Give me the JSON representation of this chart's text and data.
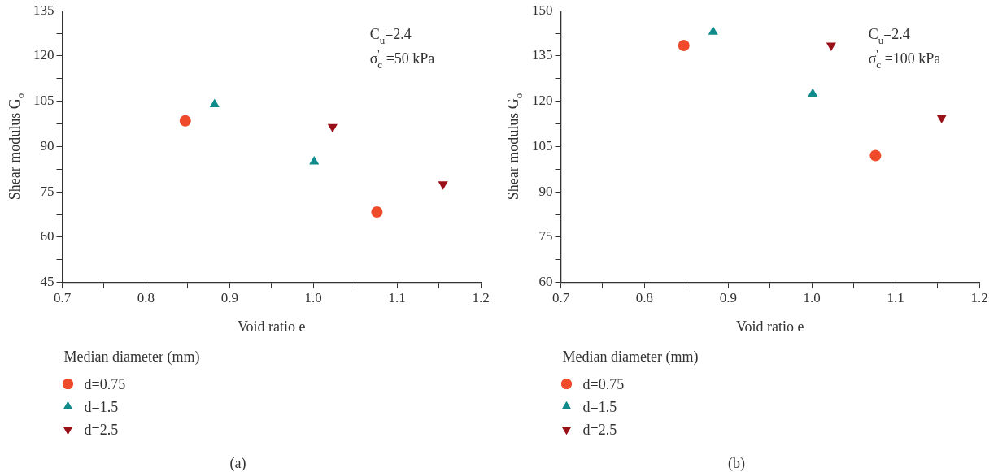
{
  "chart_data": [
    {
      "type": "scatter",
      "xlabel": "Void ratio e",
      "ylabel": "Shear modulus G$_{o}$",
      "legend_title": "Median diameter (mm)",
      "legend": "bottom",
      "annotations": [
        "C$_{u}$=2.4",
        "σ$_{c}$$^{'}$ =50 kPa",
        "(a)"
      ],
      "xlim": [
        0.7,
        1.2
      ],
      "xticks": [
        0.7,
        {
          "value": 0.75,
          "label": null
        },
        0.8,
        {
          "value": 0.85,
          "label": null
        },
        0.9,
        {
          "value": 0.95,
          "label": null
        },
        {
          "value": 1,
          "label": "1.0"
        },
        {
          "value": 1.05,
          "label": null
        },
        1.1,
        {
          "value": 1.15,
          "label": null
        },
        1.2
      ],
      "ylim": [
        45,
        135
      ],
      "yticks": [
        45,
        {
          "value": 52.5,
          "label": null
        },
        60,
        {
          "value": 67.5,
          "label": null
        },
        75,
        {
          "value": 82.5,
          "label": null
        },
        90,
        {
          "value": 97.5,
          "label": null
        },
        105,
        {
          "value": 112.5,
          "label": null
        },
        120,
        {
          "value": 127.5,
          "label": null
        },
        135
      ],
      "series": [
        {
          "name": "d=0.75",
          "color": "#ef4a2a",
          "marker": "circle",
          "x": [
            0.847,
            1.076
          ],
          "values": [
            98.5,
            68.3
          ]
        },
        {
          "name": "d=1.5",
          "color": "#108b8b",
          "marker": "triangle",
          "x": [
            0.882,
            1.001
          ],
          "values": [
            104,
            85
          ]
        },
        {
          "name": "d=2.5",
          "color": "#9a1019",
          "marker": "triangle_down",
          "x": [
            1.023,
            1.155
          ],
          "values": [
            96.5,
            77.5
          ]
        }
      ]
    },
    {
      "type": "scatter",
      "xlabel": "Void ratio e",
      "ylabel": "Shear modulus G$_{o}$",
      "legend_title": "Median diameter (mm)",
      "legend": "bottom",
      "annotations": [
        "C$_{u}$=2.4",
        "σ$_{c}$$^{'}$ =100 kPa",
        "(b)"
      ],
      "xlim": [
        0.7,
        1.2
      ],
      "xticks": [
        0.7,
        {
          "value": 0.75,
          "label": null
        },
        0.8,
        {
          "value": 0.85,
          "label": null
        },
        0.9,
        {
          "value": 0.95,
          "label": null
        },
        {
          "value": 1,
          "label": "1.0"
        },
        {
          "value": 1.05,
          "label": null
        },
        1.1,
        {
          "value": 1.15,
          "label": null
        },
        1.2
      ],
      "ylim": [
        60,
        150
      ],
      "yticks": [
        60,
        {
          "value": 67.5,
          "label": null
        },
        75,
        {
          "value": 82.5,
          "label": null
        },
        90,
        {
          "value": 97.5,
          "label": null
        },
        105,
        {
          "value": 112.5,
          "label": null
        },
        120,
        {
          "value": 127.5,
          "label": null
        },
        135,
        {
          "value": 142.5,
          "label": null
        },
        150
      ],
      "series": [
        {
          "name": "d=0.75",
          "color": "#ef4a2a",
          "marker": "circle",
          "x": [
            0.847,
            1.076
          ],
          "values": [
            138.5,
            102
          ]
        },
        {
          "name": "d=1.5",
          "color": "#108b8b",
          "marker": "triangle",
          "x": [
            0.882,
            1.001
          ],
          "values": [
            143,
            122.5
          ]
        },
        {
          "name": "d=2.5",
          "color": "#9a1019",
          "marker": "triangle_down",
          "x": [
            1.023,
            1.155
          ],
          "values": [
            138.5,
            114.5
          ]
        }
      ]
    }
  ]
}
